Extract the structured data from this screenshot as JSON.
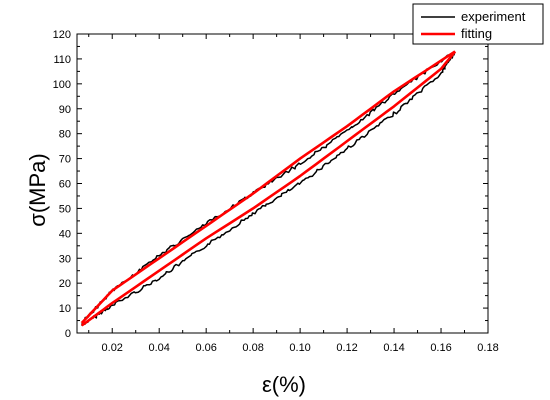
{
  "chart_data": {
    "type": "line",
    "title": "",
    "xlabel": "ε(%)",
    "ylabel": "σ(MPa)",
    "xlim": [
      0.005,
      0.18
    ],
    "ylim": [
      0,
      120
    ],
    "x_ticks": [
      0.02,
      0.04,
      0.06,
      0.08,
      0.1,
      0.12,
      0.14,
      0.16,
      0.18
    ],
    "x_tick_labels": [
      "0.02",
      "0.04",
      "0.06",
      "0.08",
      "0.10",
      "0.12",
      "0.14",
      "0.16",
      "0.18"
    ],
    "y_ticks": [
      0,
      10,
      20,
      30,
      40,
      50,
      60,
      70,
      80,
      90,
      100,
      110,
      120
    ],
    "y_tick_labels": [
      "0",
      "10",
      "20",
      "30",
      "40",
      "50",
      "60",
      "70",
      "80",
      "90",
      "100",
      "110",
      "120"
    ],
    "grid": false,
    "legend_position": "top-right",
    "series": [
      {
        "name": "experiment",
        "color": "#000000",
        "style": "noisy",
        "loading": {
          "x": [
            0.007,
            0.02,
            0.04,
            0.06,
            0.08,
            0.1,
            0.12,
            0.14,
            0.16,
            0.166
          ],
          "y": [
            3,
            11,
            22,
            35,
            48,
            60,
            74,
            88,
            104,
            113
          ]
        },
        "unloading": {
          "x": [
            0.166,
            0.14,
            0.12,
            0.1,
            0.08,
            0.06,
            0.04,
            0.02,
            0.007
          ],
          "y": [
            113,
            96,
            81,
            68,
            56,
            44,
            31,
            17,
            4
          ]
        }
      },
      {
        "name": "fitting",
        "color": "#ff0000",
        "style": "smooth",
        "loading": {
          "x": [
            0.007,
            0.02,
            0.04,
            0.06,
            0.08,
            0.1,
            0.12,
            0.14,
            0.16,
            0.166
          ],
          "y": [
            3,
            12,
            25,
            38,
            50,
            63,
            77,
            91,
            106,
            113
          ]
        },
        "unloading": {
          "x": [
            0.166,
            0.14,
            0.12,
            0.1,
            0.08,
            0.06,
            0.04,
            0.02,
            0.007
          ],
          "y": [
            113,
            97,
            83,
            70,
            56,
            43,
            30,
            17,
            4
          ]
        }
      }
    ]
  }
}
